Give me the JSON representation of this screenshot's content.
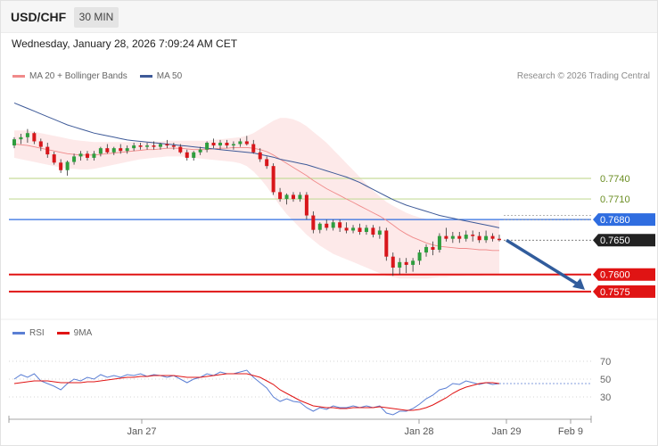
{
  "header": {
    "symbol": "USD/CHF",
    "timeframe": "30 MIN",
    "datetime": "Wednesday, January 28, 2026 7:09:24 AM CET"
  },
  "legend": {
    "ma20_label": "MA 20 + Bollinger Bands",
    "ma50_label": "MA 50",
    "copyright": "Research © 2026 Trading Central"
  },
  "rsi_legend": {
    "rsi_label": "RSI",
    "ma9_label": "9MA"
  },
  "colors": {
    "up": "#2e9e3e",
    "down": "#d8161b",
    "ma20": "#f08a8a",
    "ma50": "#3e5a98",
    "band": "#fde3e3",
    "resistance": "#c6dc9a",
    "pivot": "#2f6de0",
    "support": "#e01414",
    "arrow": "#315c9c",
    "rsi": "#5b7fd4",
    "rsi_ma": "#e01414"
  },
  "chart_data": [
    {
      "type": "candlestick",
      "title": "USD/CHF 30 MIN",
      "x_labels": [
        "Jan 27",
        "Jan 28",
        "Jan 29",
        "Feb 9"
      ],
      "ylim": [
        0.7545,
        0.787
      ],
      "levels": [
        {
          "label": "0.7740",
          "value": 0.774,
          "kind": "resistance"
        },
        {
          "label": "0.7710",
          "value": 0.771,
          "kind": "resistance"
        },
        {
          "label": "0.7680",
          "value": 0.768,
          "kind": "pivot"
        },
        {
          "label": "0.7650",
          "value": 0.765,
          "kind": "last"
        },
        {
          "label": "0.7600",
          "value": 0.76,
          "kind": "support"
        },
        {
          "label": "0.7575",
          "value": 0.7575,
          "kind": "support"
        }
      ],
      "projection": {
        "from": 0.765,
        "to": 0.7575
      },
      "ohlc": [
        [
          0.7788,
          0.78,
          0.7784,
          0.7797
        ],
        [
          0.7797,
          0.7805,
          0.779,
          0.78
        ],
        [
          0.78,
          0.7812,
          0.7792,
          0.7806
        ],
        [
          0.7806,
          0.7808,
          0.779,
          0.7794
        ],
        [
          0.7794,
          0.7798,
          0.778,
          0.7786
        ],
        [
          0.7786,
          0.7792,
          0.777,
          0.7775
        ],
        [
          0.7775,
          0.7779,
          0.776,
          0.7763
        ],
        [
          0.7763,
          0.7768,
          0.7748,
          0.7752
        ],
        [
          0.7752,
          0.7766,
          0.7744,
          0.7764
        ],
        [
          0.7764,
          0.7776,
          0.776,
          0.7772
        ],
        [
          0.7772,
          0.778,
          0.7766,
          0.7776
        ],
        [
          0.7776,
          0.778,
          0.7766,
          0.777
        ],
        [
          0.777,
          0.778,
          0.7766,
          0.7776
        ],
        [
          0.7776,
          0.7786,
          0.7772,
          0.7784
        ],
        [
          0.7784,
          0.779,
          0.7776,
          0.7778
        ],
        [
          0.7778,
          0.7786,
          0.7774,
          0.7784
        ],
        [
          0.7784,
          0.779,
          0.7776,
          0.778
        ],
        [
          0.778,
          0.7788,
          0.7776,
          0.7784
        ],
        [
          0.7784,
          0.7792,
          0.778,
          0.7788
        ],
        [
          0.7788,
          0.7792,
          0.7782,
          0.7786
        ],
        [
          0.7786,
          0.7792,
          0.7782,
          0.7788
        ],
        [
          0.7788,
          0.7794,
          0.7782,
          0.7786
        ],
        [
          0.7786,
          0.7792,
          0.7782,
          0.779
        ],
        [
          0.779,
          0.7796,
          0.7784,
          0.7788
        ],
        [
          0.7788,
          0.7792,
          0.7782,
          0.7786
        ],
        [
          0.7786,
          0.779,
          0.7776,
          0.7778
        ],
        [
          0.7778,
          0.7782,
          0.7766,
          0.777
        ],
        [
          0.777,
          0.778,
          0.7766,
          0.7778
        ],
        [
          0.7778,
          0.7786,
          0.7774,
          0.7782
        ],
        [
          0.7782,
          0.7794,
          0.7778,
          0.7792
        ],
        [
          0.7792,
          0.7798,
          0.7784,
          0.7788
        ],
        [
          0.7788,
          0.7796,
          0.7782,
          0.7792
        ],
        [
          0.7792,
          0.7796,
          0.7784,
          0.7788
        ],
        [
          0.7788,
          0.7794,
          0.7782,
          0.779
        ],
        [
          0.779,
          0.7798,
          0.7786,
          0.7794
        ],
        [
          0.7794,
          0.7802,
          0.7788,
          0.779
        ],
        [
          0.779,
          0.7796,
          0.7776,
          0.7778
        ],
        [
          0.7778,
          0.7784,
          0.7764,
          0.7768
        ],
        [
          0.7768,
          0.7772,
          0.7754,
          0.7758
        ],
        [
          0.7758,
          0.7762,
          0.7716,
          0.772
        ],
        [
          0.772,
          0.7726,
          0.7706,
          0.771
        ],
        [
          0.771,
          0.7718,
          0.7702,
          0.7716
        ],
        [
          0.7716,
          0.772,
          0.7706,
          0.771
        ],
        [
          0.771,
          0.772,
          0.7706,
          0.7716
        ],
        [
          0.7716,
          0.772,
          0.768,
          0.7686
        ],
        [
          0.7686,
          0.7692,
          0.766,
          0.7665
        ],
        [
          0.7665,
          0.7676,
          0.766,
          0.7674
        ],
        [
          0.7674,
          0.768,
          0.7664,
          0.7668
        ],
        [
          0.7668,
          0.768,
          0.7664,
          0.7676
        ],
        [
          0.7676,
          0.768,
          0.7662,
          0.7668
        ],
        [
          0.7668,
          0.7676,
          0.766,
          0.7664
        ],
        [
          0.7664,
          0.7672,
          0.766,
          0.7668
        ],
        [
          0.7668,
          0.7674,
          0.7658,
          0.7662
        ],
        [
          0.7662,
          0.7672,
          0.7658,
          0.7668
        ],
        [
          0.7668,
          0.7672,
          0.7654,
          0.7658
        ],
        [
          0.7658,
          0.767,
          0.7652,
          0.7664
        ],
        [
          0.7664,
          0.7668,
          0.762,
          0.7626
        ],
        [
          0.7626,
          0.7632,
          0.7598,
          0.761
        ],
        [
          0.761,
          0.7624,
          0.76,
          0.7618
        ],
        [
          0.7618,
          0.7624,
          0.7602,
          0.7614
        ],
        [
          0.7614,
          0.7624,
          0.7604,
          0.762
        ],
        [
          0.762,
          0.7636,
          0.7614,
          0.7632
        ],
        [
          0.7632,
          0.7644,
          0.7626,
          0.764
        ],
        [
          0.764,
          0.7648,
          0.7628,
          0.7636
        ],
        [
          0.7636,
          0.766,
          0.7632,
          0.7656
        ],
        [
          0.7656,
          0.7668,
          0.7648,
          0.7652
        ],
        [
          0.7652,
          0.7662,
          0.7646,
          0.7656
        ],
        [
          0.7656,
          0.7662,
          0.7646,
          0.7652
        ],
        [
          0.7652,
          0.7664,
          0.7648,
          0.7658
        ],
        [
          0.7658,
          0.7664,
          0.7648,
          0.7656
        ],
        [
          0.7656,
          0.7662,
          0.7646,
          0.765
        ],
        [
          0.765,
          0.7664,
          0.7646,
          0.7656
        ],
        [
          0.7656,
          0.766,
          0.7648,
          0.7652
        ],
        [
          0.7652,
          0.7658,
          0.7648,
          0.765
        ]
      ],
      "ma20": [
        0.779,
        0.7789,
        0.7788,
        0.7786,
        0.7784,
        0.7782,
        0.778,
        0.7778,
        0.7776,
        0.7775,
        0.7774,
        0.7774,
        0.7774,
        0.7775,
        0.7776,
        0.7777,
        0.7778,
        0.7779,
        0.778,
        0.7781,
        0.7782,
        0.7782,
        0.7783,
        0.7784,
        0.7784,
        0.7784,
        0.7783,
        0.7782,
        0.7782,
        0.7782,
        0.7783,
        0.7784,
        0.7784,
        0.7785,
        0.7785,
        0.7785,
        0.7784,
        0.7782,
        0.7779,
        0.7774,
        0.7768,
        0.7762,
        0.7756,
        0.775,
        0.7744,
        0.7737,
        0.7731,
        0.7725,
        0.772,
        0.7715,
        0.771,
        0.7705,
        0.77,
        0.7695,
        0.769,
        0.7685,
        0.7679,
        0.7672,
        0.7665,
        0.7659,
        0.7654,
        0.765,
        0.7646,
        0.7643,
        0.7641,
        0.764,
        0.7639,
        0.7638,
        0.7638,
        0.7637,
        0.7636,
        0.7636,
        0.7635,
        0.7635
      ],
      "bb_upper": [
        0.781,
        0.781,
        0.781,
        0.7808,
        0.7806,
        0.7804,
        0.7802,
        0.78,
        0.7798,
        0.7796,
        0.7795,
        0.7794,
        0.7793,
        0.7793,
        0.7793,
        0.7793,
        0.7793,
        0.7793,
        0.7793,
        0.7793,
        0.7794,
        0.7794,
        0.7794,
        0.7795,
        0.7795,
        0.7795,
        0.7795,
        0.7795,
        0.7795,
        0.7795,
        0.7796,
        0.7797,
        0.7798,
        0.7799,
        0.78,
        0.7802,
        0.7806,
        0.7812,
        0.7818,
        0.7824,
        0.7828,
        0.7828,
        0.7826,
        0.7822,
        0.7816,
        0.7808,
        0.78,
        0.7792,
        0.7782,
        0.7772,
        0.7762,
        0.7752,
        0.7742,
        0.7732,
        0.7722,
        0.7714,
        0.7706,
        0.77,
        0.7695,
        0.769,
        0.7686,
        0.7683,
        0.7681,
        0.768,
        0.7679,
        0.7679,
        0.7679,
        0.7679,
        0.7679,
        0.7679,
        0.7679,
        0.7679,
        0.7679,
        0.7679
      ],
      "bb_lower": [
        0.777,
        0.7768,
        0.7766,
        0.7764,
        0.7762,
        0.776,
        0.7758,
        0.7756,
        0.7754,
        0.7754,
        0.7753,
        0.7753,
        0.7754,
        0.7756,
        0.7758,
        0.776,
        0.7762,
        0.7764,
        0.7766,
        0.7768,
        0.7769,
        0.777,
        0.7771,
        0.7772,
        0.7772,
        0.7772,
        0.7771,
        0.777,
        0.7769,
        0.7768,
        0.7767,
        0.7766,
        0.7765,
        0.7764,
        0.7762,
        0.7758,
        0.775,
        0.774,
        0.7728,
        0.7714,
        0.77,
        0.7688,
        0.7678,
        0.7668,
        0.7658,
        0.765,
        0.7642,
        0.7636,
        0.763,
        0.7626,
        0.7622,
        0.7618,
        0.7614,
        0.761,
        0.7606,
        0.7602,
        0.7598,
        0.7596,
        0.7594,
        0.7594,
        0.7594,
        0.7594,
        0.7594,
        0.7595,
        0.7596,
        0.7596,
        0.7597,
        0.7597,
        0.7598,
        0.7598,
        0.7598,
        0.7599,
        0.7599,
        0.7599
      ],
      "ma50": [
        0.785,
        0.7846,
        0.7842,
        0.7838,
        0.7834,
        0.783,
        0.7826,
        0.7822,
        0.7818,
        0.7815,
        0.7812,
        0.7809,
        0.7806,
        0.7804,
        0.7802,
        0.78,
        0.7798,
        0.7796,
        0.7795,
        0.7794,
        0.7793,
        0.7792,
        0.7791,
        0.779,
        0.7789,
        0.7788,
        0.7787,
        0.7786,
        0.7785,
        0.7784,
        0.7783,
        0.7782,
        0.7781,
        0.778,
        0.7779,
        0.7778,
        0.7777,
        0.7775,
        0.7773,
        0.7771,
        0.7768,
        0.7766,
        0.7764,
        0.7762,
        0.776,
        0.7757,
        0.7754,
        0.7751,
        0.7748,
        0.7745,
        0.7742,
        0.7738,
        0.7734,
        0.7729,
        0.7724,
        0.7719,
        0.7714,
        0.7709,
        0.7705,
        0.7701,
        0.7698,
        0.7695,
        0.7692,
        0.7689,
        0.7686,
        0.7684,
        0.7682,
        0.768,
        0.7678,
        0.7676,
        0.7674,
        0.7672,
        0.767,
        0.7668
      ]
    },
    {
      "type": "line",
      "title": "RSI",
      "ylim": [
        10,
        90
      ],
      "ticks": [
        70,
        50,
        30
      ],
      "series": [
        {
          "name": "RSI",
          "values": [
            50,
            55,
            52,
            56,
            48,
            45,
            42,
            38,
            45,
            50,
            48,
            52,
            50,
            55,
            52,
            54,
            52,
            55,
            54,
            56,
            53,
            55,
            54,
            52,
            54,
            50,
            46,
            50,
            52,
            56,
            54,
            58,
            56,
            56,
            58,
            60,
            52,
            46,
            40,
            30,
            25,
            28,
            25,
            24,
            18,
            14,
            18,
            16,
            20,
            18,
            18,
            20,
            18,
            20,
            18,
            20,
            12,
            10,
            14,
            14,
            17,
            22,
            28,
            32,
            38,
            40,
            45,
            44,
            48,
            46,
            44,
            46,
            44,
            45
          ]
        },
        {
          "name": "9MA",
          "values": [
            45,
            46,
            47,
            48,
            48,
            48,
            47,
            46,
            46,
            46,
            46,
            47,
            47,
            48,
            49,
            50,
            51,
            52,
            52,
            53,
            53,
            54,
            54,
            54,
            54,
            53,
            52,
            52,
            52,
            53,
            54,
            55,
            56,
            56,
            56,
            56,
            54,
            52,
            48,
            44,
            38,
            34,
            30,
            26,
            23,
            20,
            19,
            18,
            18,
            17,
            17,
            18,
            18,
            18,
            18,
            19,
            18,
            17,
            16,
            15,
            15,
            16,
            18,
            21,
            25,
            29,
            34,
            38,
            41,
            43,
            45,
            46,
            46,
            45
          ]
        }
      ]
    }
  ]
}
